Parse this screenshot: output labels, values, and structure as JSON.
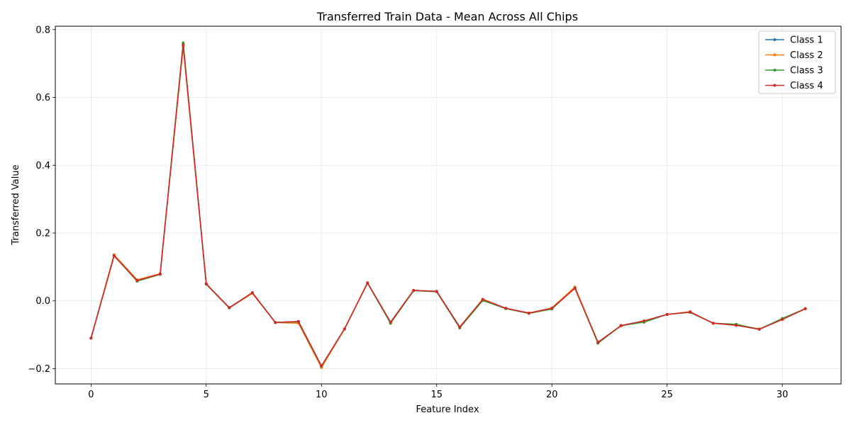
{
  "chart_data": {
    "type": "line",
    "title": "Transferred Train Data - Mean Across All Chips",
    "xlabel": "Feature Index",
    "ylabel": "Transferred Value",
    "xlim": [
      -1.55,
      32.55
    ],
    "ylim": [
      -0.245,
      0.81
    ],
    "xticks": [
      0,
      5,
      10,
      15,
      20,
      25,
      30
    ],
    "yticks": [
      -0.2,
      0.0,
      0.2,
      0.4,
      0.6,
      0.8
    ],
    "ytick_labels": [
      "−0.2",
      "0.0",
      "0.2",
      "0.4",
      "0.6",
      "0.8"
    ],
    "grid": true,
    "legend_position": "top-right",
    "x": [
      0,
      1,
      2,
      3,
      4,
      5,
      6,
      7,
      8,
      9,
      10,
      11,
      12,
      13,
      14,
      15,
      16,
      17,
      18,
      19,
      20,
      21,
      22,
      23,
      24,
      25,
      26,
      27,
      28,
      29,
      30,
      31
    ],
    "series": [
      {
        "name": "Class 1",
        "color": "#1f77b4",
        "values": [
          -0.11,
          0.133,
          0.06,
          0.079,
          0.755,
          0.05,
          -0.02,
          0.024,
          -0.064,
          -0.061,
          -0.192,
          -0.083,
          0.053,
          -0.063,
          0.031,
          0.028,
          -0.077,
          0.003,
          -0.022,
          -0.036,
          -0.022,
          0.038,
          -0.123,
          -0.073,
          -0.06,
          -0.04,
          -0.033,
          -0.066,
          -0.071,
          -0.083,
          -0.054,
          -0.023
        ]
      },
      {
        "name": "Class 2",
        "color": "#ff7f0e",
        "values": [
          -0.11,
          0.136,
          0.062,
          0.08,
          0.75,
          0.05,
          -0.021,
          0.022,
          -0.064,
          -0.066,
          -0.197,
          -0.083,
          0.053,
          -0.065,
          0.031,
          0.027,
          -0.078,
          0.005,
          -0.022,
          -0.036,
          -0.021,
          0.041,
          -0.123,
          -0.074,
          -0.06,
          -0.04,
          -0.032,
          -0.066,
          -0.072,
          -0.083,
          -0.055,
          -0.023
        ]
      },
      {
        "name": "Class 3",
        "color": "#2ca02c",
        "values": [
          -0.11,
          0.133,
          0.058,
          0.078,
          0.761,
          0.049,
          -0.021,
          0.024,
          -0.064,
          -0.062,
          -0.193,
          -0.083,
          0.052,
          -0.066,
          0.03,
          0.027,
          -0.08,
          0.001,
          -0.023,
          -0.037,
          -0.024,
          0.038,
          -0.125,
          -0.073,
          -0.063,
          -0.04,
          -0.034,
          -0.066,
          -0.069,
          -0.084,
          -0.052,
          -0.023
        ]
      },
      {
        "name": "Class 4",
        "color": "#d62728",
        "values": [
          -0.11,
          0.133,
          0.06,
          0.079,
          0.755,
          0.05,
          -0.02,
          0.024,
          -0.064,
          -0.061,
          -0.192,
          -0.083,
          0.053,
          -0.063,
          0.031,
          0.028,
          -0.077,
          0.004,
          -0.022,
          -0.036,
          -0.022,
          0.037,
          -0.122,
          -0.073,
          -0.059,
          -0.04,
          -0.033,
          -0.066,
          -0.072,
          -0.084,
          -0.055,
          -0.023
        ]
      }
    ]
  }
}
